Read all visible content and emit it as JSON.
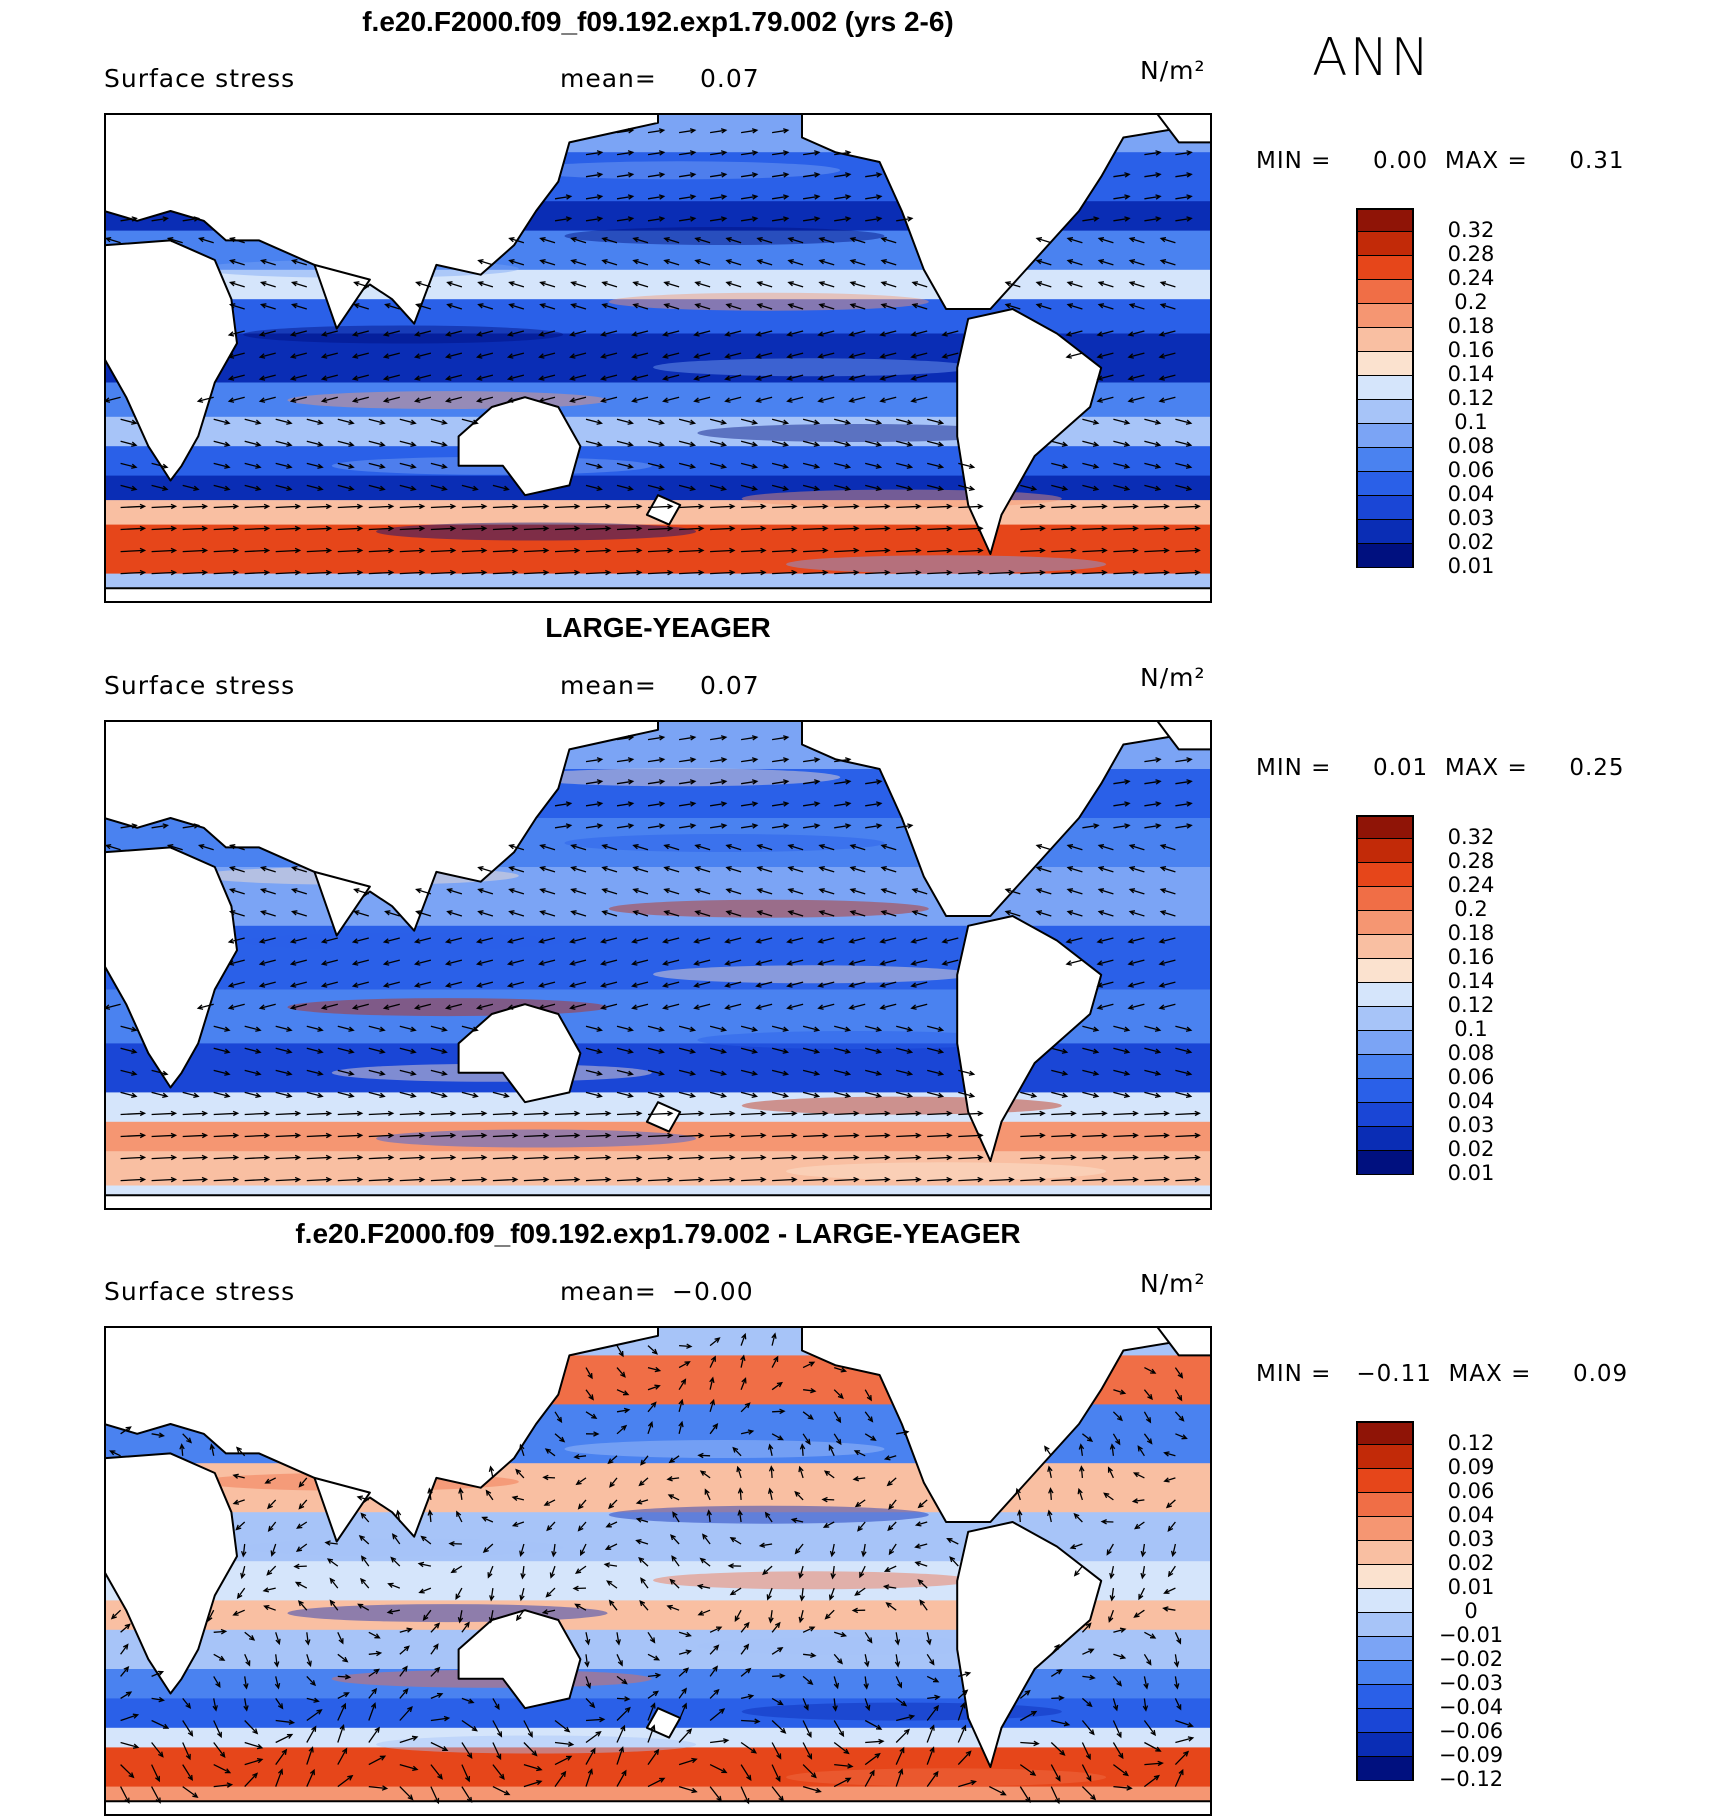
{
  "season": "ANN",
  "palette_pos": [
    "#00107f",
    "#0a2db5",
    "#1a46d6",
    "#2a60e8",
    "#4a82f0",
    "#7ba4f5",
    "#a7c4f8",
    "#d5e5fb",
    "#fbe2cf",
    "#f9bfa2",
    "#f59672",
    "#f06e46",
    "#e6461a",
    "#c22a08",
    "#8f1406"
  ],
  "panels": [
    {
      "title": "f.e20.F2000.f09_f09.192.exp1.79.002 (yrs 2-6)",
      "variable": "Surface stress",
      "mean_label": "mean=",
      "mean_value": "0.07",
      "units": "N/m²",
      "min_label": "MIN =",
      "min_value": "0.00",
      "max_label": "MAX =",
      "max_value": "0.31",
      "levels": [
        "0.32",
        "0.28",
        "0.24",
        "0.2",
        "0.18",
        "0.16",
        "0.14",
        "0.12",
        "0.1",
        "0.08",
        "0.06",
        "0.04",
        "0.03",
        "0.02",
        "0.01"
      ],
      "colors": [
        "#8f1406",
        "#c22a08",
        "#e6461a",
        "#f06e46",
        "#f59672",
        "#f9bfa2",
        "#fbe2cf",
        "#d5e5fb",
        "#a7c4f8",
        "#7ba4f5",
        "#4a82f0",
        "#2a60e8",
        "#1a46d6",
        "#0a2db5",
        "#00107f"
      ]
    },
    {
      "title": "LARGE-YEAGER",
      "variable": "Surface stress",
      "mean_label": "mean=",
      "mean_value": "0.07",
      "units": "N/m²",
      "min_label": "MIN =",
      "min_value": "0.01",
      "max_label": "MAX =",
      "max_value": "0.25",
      "levels": [
        "0.32",
        "0.28",
        "0.24",
        "0.2",
        "0.18",
        "0.16",
        "0.14",
        "0.12",
        "0.1",
        "0.08",
        "0.06",
        "0.04",
        "0.03",
        "0.02",
        "0.01"
      ],
      "colors": [
        "#8f1406",
        "#c22a08",
        "#e6461a",
        "#f06e46",
        "#f59672",
        "#f9bfa2",
        "#fbe2cf",
        "#d5e5fb",
        "#a7c4f8",
        "#7ba4f5",
        "#4a82f0",
        "#2a60e8",
        "#1a46d6",
        "#0a2db5",
        "#00107f"
      ]
    },
    {
      "title": "f.e20.F2000.f09_f09.192.exp1.79.002 - LARGE-YEAGER",
      "variable": "Surface stress",
      "mean_label": "mean=",
      "mean_value": "−0.00",
      "units": "N/m²",
      "min_label": "MIN =",
      "min_value": "−0.11",
      "max_label": "MAX =",
      "max_value": "0.09",
      "levels": [
        "0.12",
        "0.09",
        "0.06",
        "0.04",
        "0.03",
        "0.02",
        "0.01",
        "0",
        "−0.01",
        "−0.02",
        "−0.03",
        "−0.04",
        "−0.06",
        "−0.09",
        "−0.12"
      ],
      "colors": [
        "#8f1406",
        "#c22a08",
        "#e6461a",
        "#f06e46",
        "#f59672",
        "#f9bfa2",
        "#fbe2cf",
        "#d5e5fb",
        "#a7c4f8",
        "#7ba4f5",
        "#4a82f0",
        "#2a60e8",
        "#1a46d6",
        "#0a2db5",
        "#00107f"
      ]
    }
  ]
}
